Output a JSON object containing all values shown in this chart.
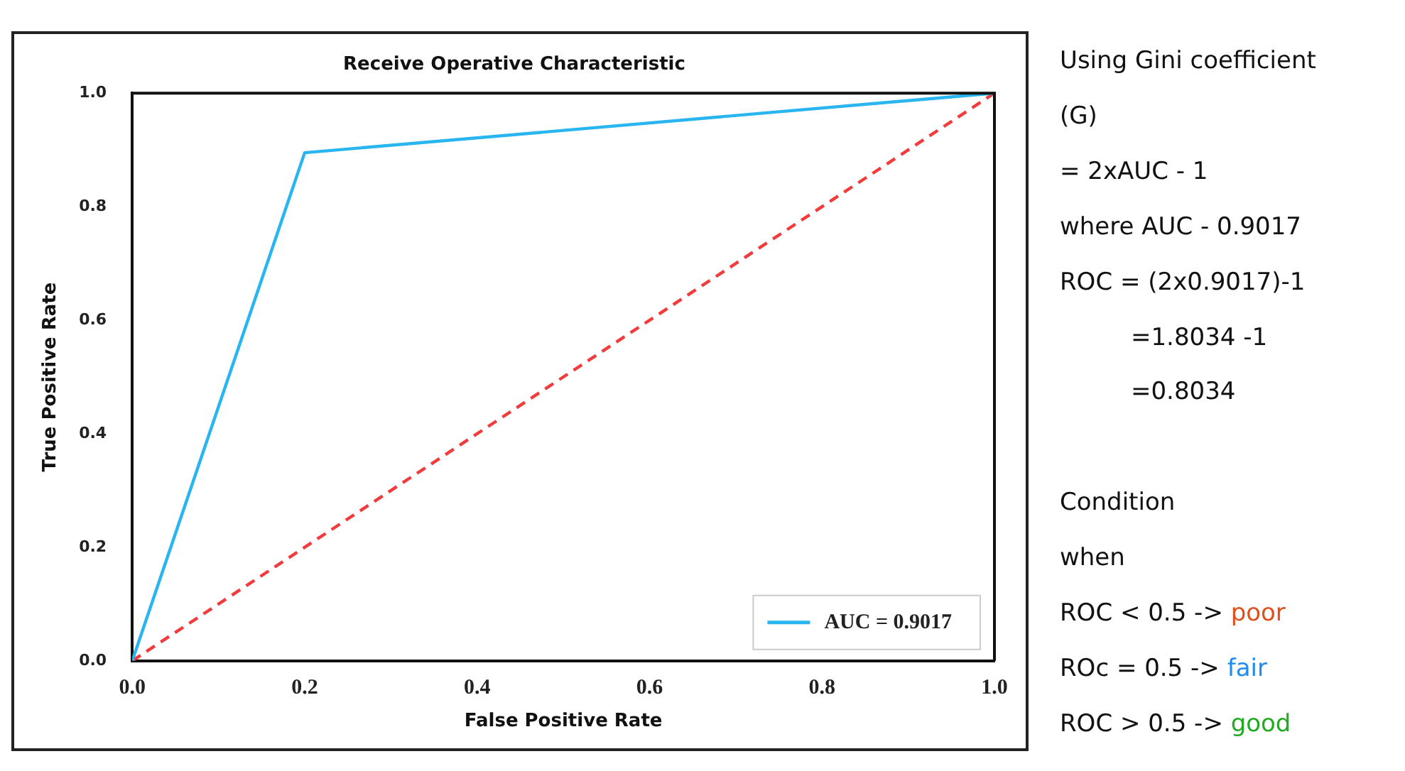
{
  "chart_data": {
    "type": "line",
    "title": "Receive Operative Characteristic",
    "xlabel": "False Positive Rate",
    "ylabel": "True Positive Rate",
    "xlim": [
      0,
      1
    ],
    "ylim": [
      0,
      1
    ],
    "xticks": [
      {
        "value": 0,
        "label": "0.0"
      },
      {
        "value": 0.2,
        "label": "0.2"
      },
      {
        "value": 0.4,
        "label": "0.4"
      },
      {
        "value": 0.6,
        "label": "0.6"
      },
      {
        "value": 0.8,
        "label": "0.8"
      },
      {
        "value": 1,
        "label": "1.0"
      }
    ],
    "yticks": [
      {
        "value": 0,
        "label": "0.0"
      },
      {
        "value": 0.2,
        "label": "0.2"
      },
      {
        "value": 0.4,
        "label": "0.4"
      },
      {
        "value": 0.6,
        "label": "0.6"
      },
      {
        "value": 0.8,
        "label": "0.8"
      },
      {
        "value": 1,
        "label": "1.0"
      }
    ],
    "grid": false,
    "legend": "bottom right",
    "marker": "none",
    "series": [
      {
        "name": "AUC = 0.9017",
        "color": "#29b5ef",
        "x": [
          0,
          0.2,
          1
        ],
        "values": [
          0,
          0.895,
          1
        ],
        "line_style": "solid"
      },
      {
        "color": "#f03c3c",
        "x": [
          0,
          1
        ],
        "values": [
          0,
          1
        ],
        "line_style": "dashed"
      }
    ],
    "annotations": [
      "Using Gini coefficient",
      "(G)",
      "= 2xAUC - 1",
      "where AUC - 0.9017",
      "ROC = (2x0.9017)-1",
      "=1.8034 -1",
      "=0.8034",
      "Condition",
      "when",
      "ROC < 0.5 -> poor",
      "ROc = 0.5 -> fair",
      "ROC > 0.5 -> good"
    ]
  }
}
